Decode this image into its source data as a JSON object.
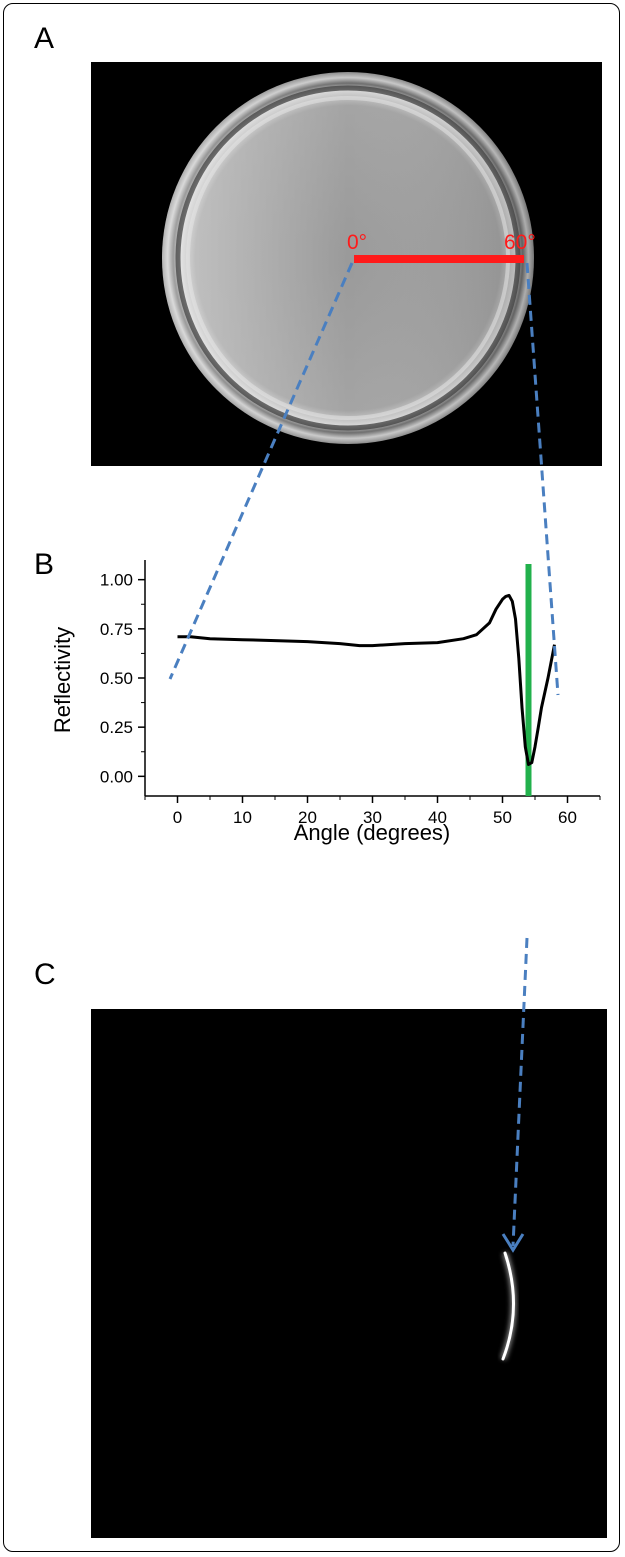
{
  "panels": {
    "a": {
      "label": "A"
    },
    "b": {
      "label": "B"
    },
    "c": {
      "label": "C"
    }
  },
  "image_a": {
    "start_label": "0°",
    "end_label": "60°",
    "scale_color": "#ff1a1a"
  },
  "chart_data": {
    "type": "line",
    "xlabel": "Angle (degrees)",
    "ylabel": "Reflectivity",
    "xlim": [
      -5,
      65
    ],
    "ylim": [
      -0.1,
      1.1
    ],
    "x_ticks": [
      0,
      10,
      20,
      30,
      40,
      50,
      60
    ],
    "x_tick_labels": [
      "0",
      "10",
      "20",
      "30",
      "40",
      "50",
      "60"
    ],
    "y_ticks": [
      0.0,
      0.25,
      0.5,
      0.75,
      1.0
    ],
    "y_tick_labels": [
      "0.00",
      "0.25",
      "0.50",
      "0.75",
      "1.00"
    ],
    "grid": false,
    "series": [
      {
        "color": "#000000",
        "x": [
          0,
          2,
          5,
          10,
          15,
          20,
          25,
          28,
          30,
          35,
          40,
          44,
          46,
          48,
          49,
          50,
          50.5,
          51,
          51.5,
          52,
          52.5,
          53,
          53.5,
          54,
          54.5,
          55,
          55.5,
          56,
          57,
          58
        ],
        "y": [
          0.71,
          0.71,
          0.7,
          0.695,
          0.69,
          0.685,
          0.675,
          0.665,
          0.665,
          0.675,
          0.68,
          0.7,
          0.72,
          0.78,
          0.85,
          0.9,
          0.915,
          0.92,
          0.89,
          0.8,
          0.6,
          0.35,
          0.15,
          0.06,
          0.07,
          0.15,
          0.25,
          0.35,
          0.5,
          0.67
        ]
      }
    ],
    "marker_line": {
      "x": 54,
      "color": "#22b14c"
    }
  },
  "connector_color": "#4a7fc0"
}
